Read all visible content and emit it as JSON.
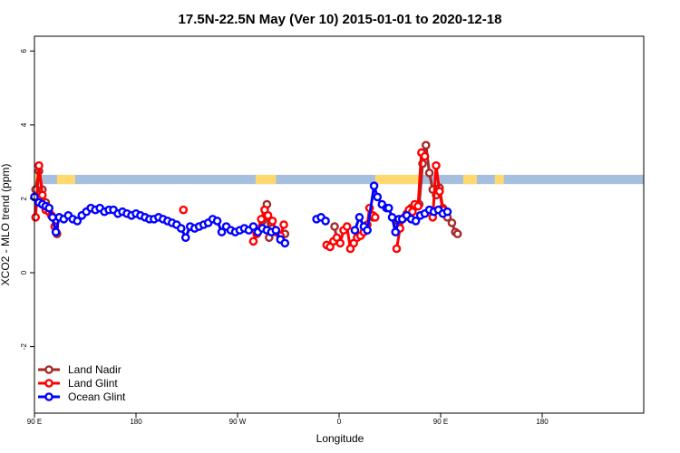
{
  "chart_data": {
    "type": "line",
    "title": "17.5N-22.5N May (Ver 10)   2015-01-01 to 2020-12-18",
    "xlabel": "Longitude",
    "ylabel": "XCO2 - MLO trend (ppm)",
    "xlim": [
      -90,
      180
    ],
    "ylim": [
      -3.8,
      6.4
    ],
    "xticks": [
      {
        "value": -90,
        "label": "90 E"
      },
      {
        "value": -45,
        "label": "180"
      },
      {
        "value": 0,
        "label": "90 W"
      },
      {
        "value": 45,
        "label": "0"
      },
      {
        "value": 90,
        "label": "90 E"
      },
      {
        "value": 135,
        "label": "180"
      }
    ],
    "yticks": [
      {
        "value": -2,
        "label": "-2"
      },
      {
        "value": 0,
        "label": "0"
      },
      {
        "value": 2,
        "label": "2"
      },
      {
        "value": 4,
        "label": "4"
      },
      {
        "value": 6,
        "label": "6"
      }
    ],
    "grid": false,
    "legend_position": "bottom-left",
    "land_mask_band": {
      "y_range": [
        2.4,
        2.65
      ],
      "ocean_color": "#a7bfdf",
      "land_color": "#ffd86e",
      "land_segments": [
        [
          -90,
          -87
        ],
        [
          -80,
          -72
        ],
        [
          8,
          17
        ],
        [
          61,
          81
        ],
        [
          100,
          106
        ],
        [
          114,
          118
        ]
      ]
    },
    "series": [
      {
        "name": "Land Nadir",
        "color": "#a52a2a",
        "points": [
          [
            -89.5,
            2.25
          ],
          [
            -88,
            2.75
          ],
          [
            -86.5,
            2.25
          ],
          [
            -85,
            1.9
          ],
          [
            -84,
            1.75
          ],
          [
            -82.5,
            1.55
          ],
          [
            -81,
            1.25
          ],
          [
            -80,
            1.05
          ],
          [
            11,
            1.4
          ],
          [
            13,
            1.85
          ],
          [
            14,
            0.95
          ],
          [
            15.5,
            1.2
          ],
          [
            17,
            1.1
          ],
          [
            21,
            1.05
          ],
          [
            43,
            1.25
          ],
          [
            44,
            0.9
          ],
          [
            60,
            1.5
          ],
          [
            71,
            1.4
          ],
          [
            73,
            1.45
          ],
          [
            75,
            1.6
          ],
          [
            77,
            1.75
          ],
          [
            79,
            1.8
          ],
          [
            80.5,
            1.85
          ],
          [
            82,
            2.95
          ],
          [
            83.5,
            3.45
          ],
          [
            85,
            2.7
          ],
          [
            86.5,
            2.25
          ],
          [
            88,
            2.1
          ],
          [
            89.5,
            2.3
          ],
          [
            91,
            1.75
          ],
          [
            93,
            1.5
          ],
          [
            95,
            1.35
          ],
          [
            96.5,
            1.1
          ],
          [
            97.5,
            1.05
          ]
        ]
      },
      {
        "name": "Land Glint",
        "color": "#ff0000",
        "points": [
          [
            -89.5,
            1.5
          ],
          [
            -88,
            2.9
          ],
          [
            -86.5,
            2.1
          ],
          [
            -85,
            1.7
          ],
          [
            -83.5,
            1.65
          ],
          [
            -82.5,
            1.55
          ],
          [
            -81,
            1.25
          ],
          [
            -24,
            1.7
          ],
          [
            7,
            0.85
          ],
          [
            8.5,
            1.05
          ],
          [
            10.5,
            1.45
          ],
          [
            12,
            1.7
          ],
          [
            13.5,
            1.55
          ],
          [
            15.5,
            1.4
          ],
          [
            17,
            1.15
          ],
          [
            19,
            1.0
          ],
          [
            20.5,
            1.3
          ],
          [
            39.5,
            0.75
          ],
          [
            41,
            0.7
          ],
          [
            42.5,
            0.85
          ],
          [
            44,
            0.95
          ],
          [
            45.5,
            0.8
          ],
          [
            47,
            1.15
          ],
          [
            48.5,
            1.25
          ],
          [
            50,
            0.65
          ],
          [
            51.5,
            0.8
          ],
          [
            53,
            0.95
          ],
          [
            54.5,
            1.0
          ],
          [
            56,
            1.1
          ],
          [
            57.5,
            1.3
          ],
          [
            58.5,
            1.75
          ],
          [
            60,
            1.55
          ],
          [
            61,
            1.5
          ],
          [
            70.5,
            0.65
          ],
          [
            72,
            1.2
          ],
          [
            74,
            1.5
          ],
          [
            76,
            1.7
          ],
          [
            77.5,
            1.65
          ],
          [
            78.5,
            1.85
          ],
          [
            80,
            1.8
          ],
          [
            81.5,
            3.25
          ],
          [
            83,
            3.15
          ],
          [
            86.5,
            1.5
          ],
          [
            88,
            2.9
          ],
          [
            89.5,
            2.2
          ],
          [
            91,
            1.7
          ]
        ]
      },
      {
        "name": "Ocean Glint",
        "color": "#0000ff",
        "points": [
          [
            -90,
            2.05
          ],
          [
            -88,
            1.9
          ],
          [
            -86.5,
            1.85
          ],
          [
            -85,
            1.8
          ],
          [
            -83.5,
            1.75
          ],
          [
            -82,
            1.5
          ],
          [
            -80.5,
            1.1
          ],
          [
            -79,
            1.5
          ],
          [
            -77,
            1.45
          ],
          [
            -75,
            1.55
          ],
          [
            -73,
            1.45
          ],
          [
            -71,
            1.4
          ],
          [
            -69,
            1.55
          ],
          [
            -67,
            1.65
          ],
          [
            -65,
            1.75
          ],
          [
            -63,
            1.7
          ],
          [
            -61,
            1.75
          ],
          [
            -59,
            1.65
          ],
          [
            -57,
            1.7
          ],
          [
            -55,
            1.7
          ],
          [
            -53,
            1.6
          ],
          [
            -51,
            1.65
          ],
          [
            -49,
            1.6
          ],
          [
            -47,
            1.55
          ],
          [
            -45,
            1.6
          ],
          [
            -43,
            1.55
          ],
          [
            -41,
            1.5
          ],
          [
            -39,
            1.45
          ],
          [
            -37,
            1.45
          ],
          [
            -35,
            1.5
          ],
          [
            -33,
            1.45
          ],
          [
            -31,
            1.4
          ],
          [
            -29,
            1.35
          ],
          [
            -27,
            1.3
          ],
          [
            -25,
            1.2
          ],
          [
            -23,
            0.95
          ],
          [
            -21,
            1.25
          ],
          [
            -19,
            1.2
          ],
          [
            -17,
            1.25
          ],
          [
            -15,
            1.3
          ],
          [
            -13,
            1.35
          ],
          [
            -11,
            1.45
          ],
          [
            -9,
            1.4
          ],
          [
            -7,
            1.1
          ],
          [
            -5,
            1.25
          ],
          [
            -3,
            1.15
          ],
          [
            -1,
            1.1
          ],
          [
            1,
            1.15
          ],
          [
            3,
            1.2
          ],
          [
            5,
            1.15
          ],
          [
            7,
            1.25
          ],
          [
            9,
            1.1
          ],
          [
            11,
            1.2
          ],
          [
            13,
            1.15
          ],
          [
            15,
            1.1
          ],
          [
            17,
            1.15
          ],
          [
            19,
            0.9
          ],
          [
            21,
            0.8
          ],
          [
            35,
            1.45
          ],
          [
            37,
            1.5
          ],
          [
            39,
            1.4
          ],
          [
            52,
            1.15
          ],
          [
            54,
            1.5
          ],
          [
            56,
            1.25
          ],
          [
            57.5,
            1.15
          ],
          [
            60.5,
            2.35
          ],
          [
            62,
            2.05
          ],
          [
            64,
            1.85
          ],
          [
            66,
            1.75
          ],
          [
            67,
            1.75
          ],
          [
            68.5,
            1.5
          ],
          [
            70,
            1.1
          ],
          [
            71.5,
            1.45
          ],
          [
            73,
            1.45
          ],
          [
            75,
            1.55
          ],
          [
            77,
            1.45
          ],
          [
            79,
            1.4
          ],
          [
            81,
            1.55
          ],
          [
            83,
            1.6
          ],
          [
            85,
            1.7
          ],
          [
            87,
            1.65
          ],
          [
            89,
            1.7
          ],
          [
            91,
            1.6
          ],
          [
            93,
            1.65
          ]
        ]
      }
    ]
  }
}
